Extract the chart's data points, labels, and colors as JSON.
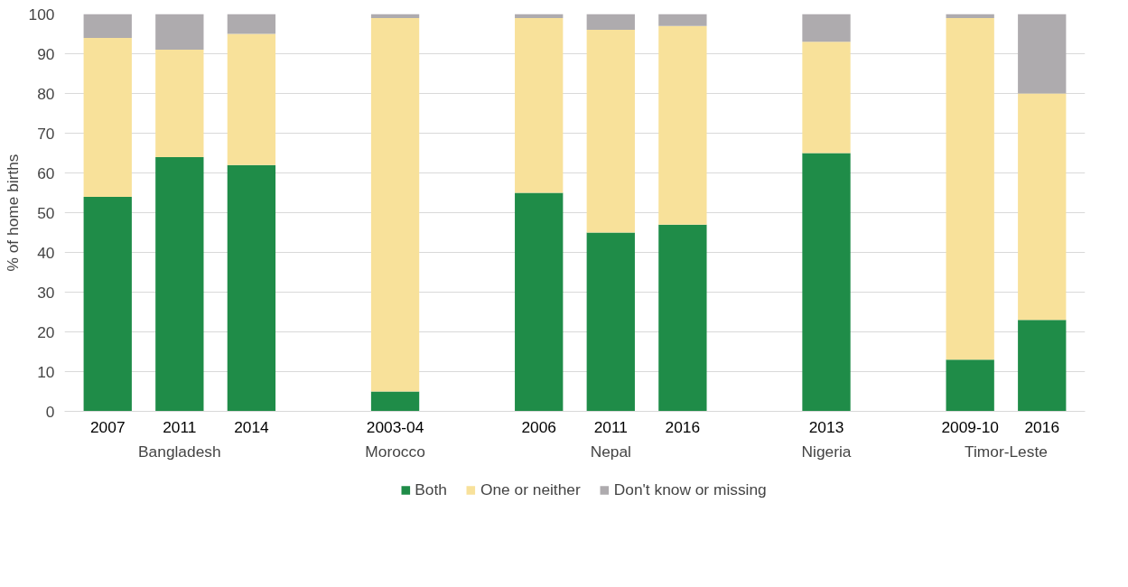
{
  "chart_data": {
    "type": "bar",
    "stacked": true,
    "ylabel": "% of home births",
    "categories": [
      "2007",
      "2011",
      "2014",
      null,
      "2003-04",
      null,
      "2006",
      "2011",
      "2016",
      null,
      "2013",
      null,
      "2009-10",
      "2016"
    ],
    "series": [
      {
        "name": "Both",
        "color": "#1f8c48",
        "values": [
          54,
          64,
          62,
          null,
          5,
          null,
          55,
          45,
          47,
          null,
          65,
          null,
          13,
          23
        ]
      },
      {
        "name": "One or neither",
        "color": "#f8e19a",
        "values": [
          40,
          27,
          33,
          null,
          94,
          null,
          44,
          51,
          50,
          null,
          28,
          null,
          86,
          57
        ]
      },
      {
        "name": "Don't know or missing",
        "color": "#aeabae",
        "values": [
          6,
          9,
          5,
          null,
          1,
          null,
          1,
          4,
          3,
          null,
          7,
          null,
          1,
          20
        ]
      }
    ],
    "annotations": [
      "Bangladesh",
      "Morocco",
      "Nepal",
      "Nigeria",
      "Timor-Leste"
    ],
    "ylim": [
      0,
      100
    ],
    "yticks": [
      0,
      10,
      20,
      30,
      40,
      50,
      60,
      70,
      80,
      90,
      100
    ],
    "grid": "y",
    "legend": "bottom"
  }
}
